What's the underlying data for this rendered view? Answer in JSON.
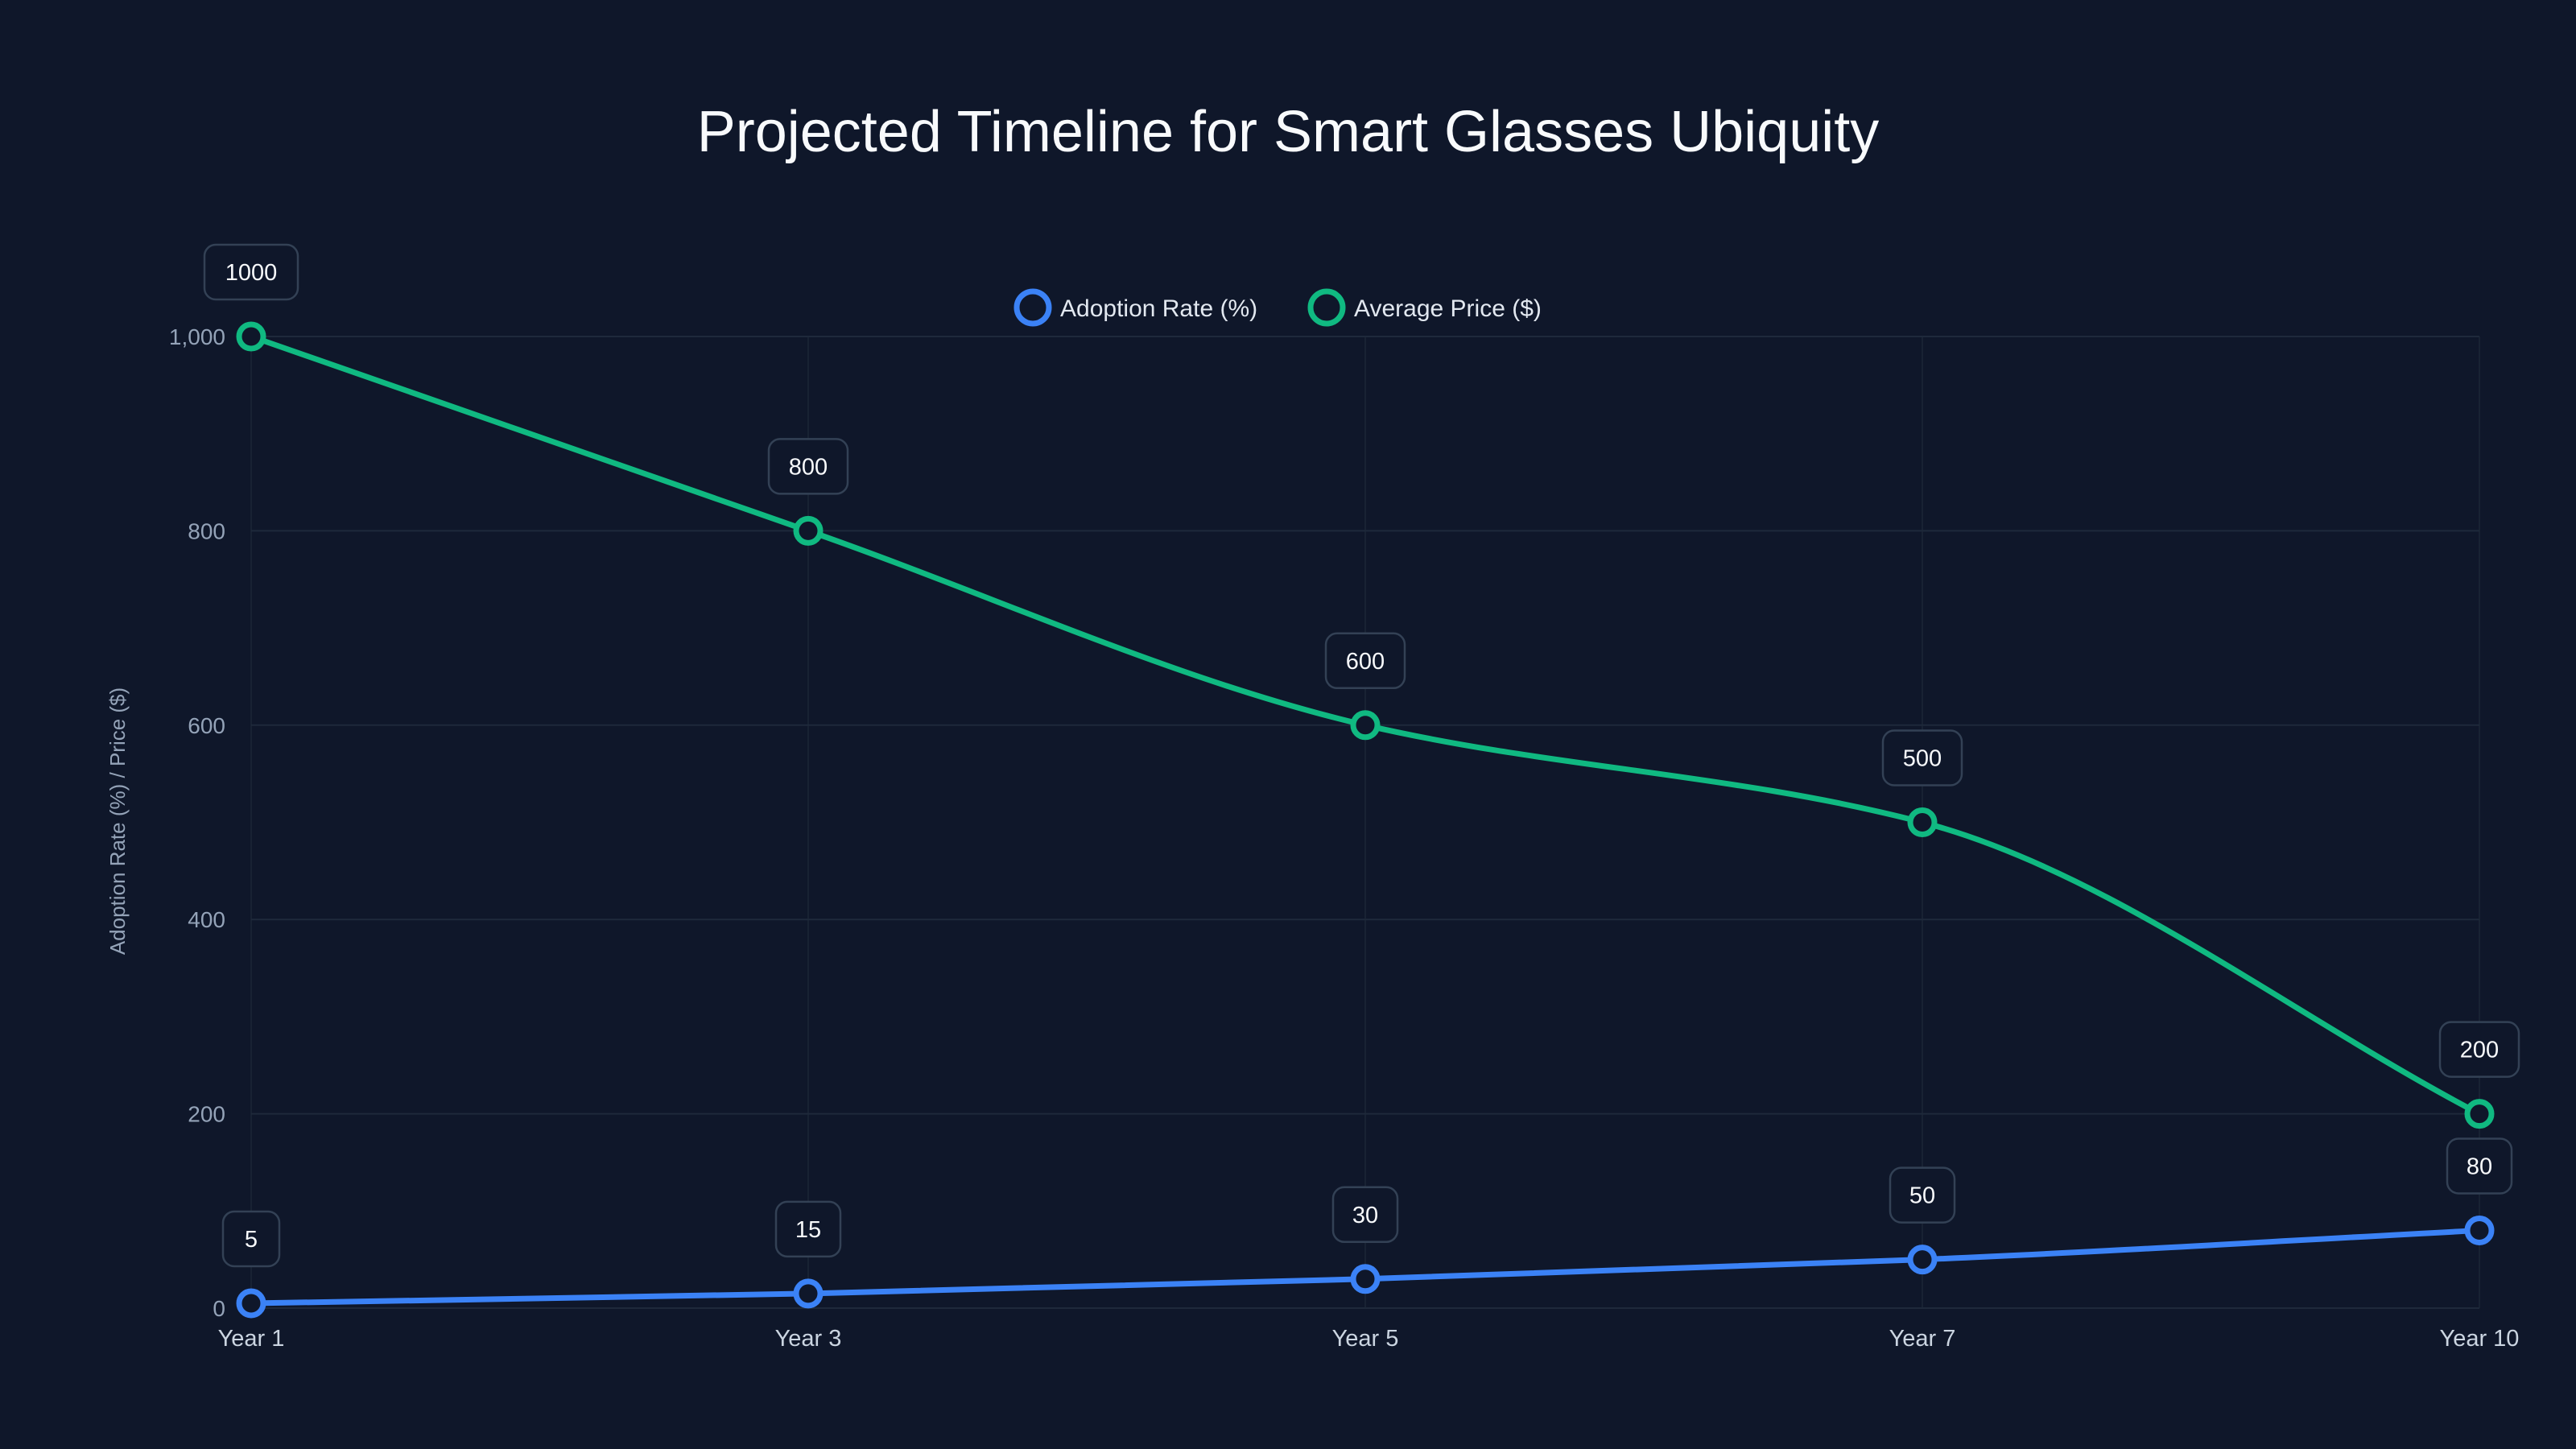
{
  "chart_data": {
    "type": "line",
    "title": "Projected Timeline for Smart Glasses Ubiquity",
    "xlabel": "",
    "ylabel": "Adoption Rate (%) / Price ($)",
    "categories": [
      "Year 1",
      "Year 3",
      "Year 5",
      "Year 7",
      "Year 10"
    ],
    "ylim": [
      0,
      1000
    ],
    "yticks": [
      0,
      200,
      400,
      600,
      800,
      1000
    ],
    "ytick_labels": [
      "0",
      "200",
      "400",
      "600",
      "800",
      "1,000"
    ],
    "grid": true,
    "legend_position": "top-center",
    "series": [
      {
        "name": "Adoption Rate (%)",
        "color": "#3b82f6",
        "values": [
          5,
          15,
          30,
          50,
          80
        ],
        "labels": [
          "5",
          "15",
          "30",
          "50",
          "80"
        ]
      },
      {
        "name": "Average Price ($)",
        "color": "#10b981",
        "values": [
          1000,
          800,
          600,
          500,
          200
        ],
        "labels": [
          "1000",
          "800",
          "600",
          "500",
          "200"
        ]
      }
    ]
  }
}
